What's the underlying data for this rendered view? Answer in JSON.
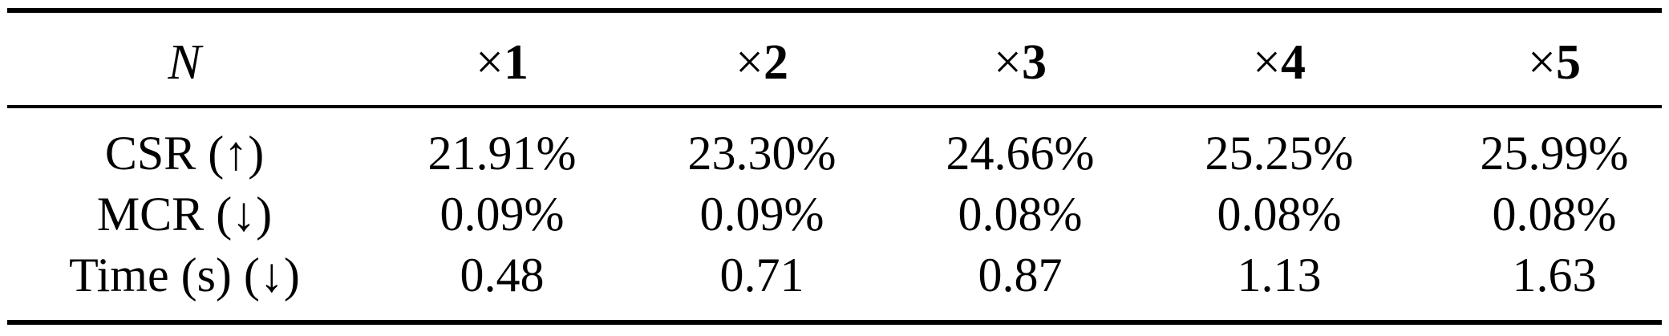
{
  "table": {
    "header": {
      "param_label": "N",
      "columns": [
        {
          "sign": "×",
          "value": "1"
        },
        {
          "sign": "×",
          "value": "2"
        },
        {
          "sign": "×",
          "value": "3"
        },
        {
          "sign": "×",
          "value": "4"
        },
        {
          "sign": "×",
          "value": "5"
        }
      ]
    },
    "rows": [
      {
        "label": "CSR (↑)",
        "cells": [
          "21.91%",
          "23.30%",
          "24.66%",
          "25.25%",
          "25.99%"
        ]
      },
      {
        "label": "MCR (↓)",
        "cells": [
          "0.09%",
          "0.09%",
          "0.08%",
          "0.08%",
          "0.08%"
        ]
      },
      {
        "label": "Time (s) (↓)",
        "cells": [
          "0.48",
          "0.71",
          "0.87",
          "1.13",
          "1.63"
        ]
      }
    ]
  }
}
